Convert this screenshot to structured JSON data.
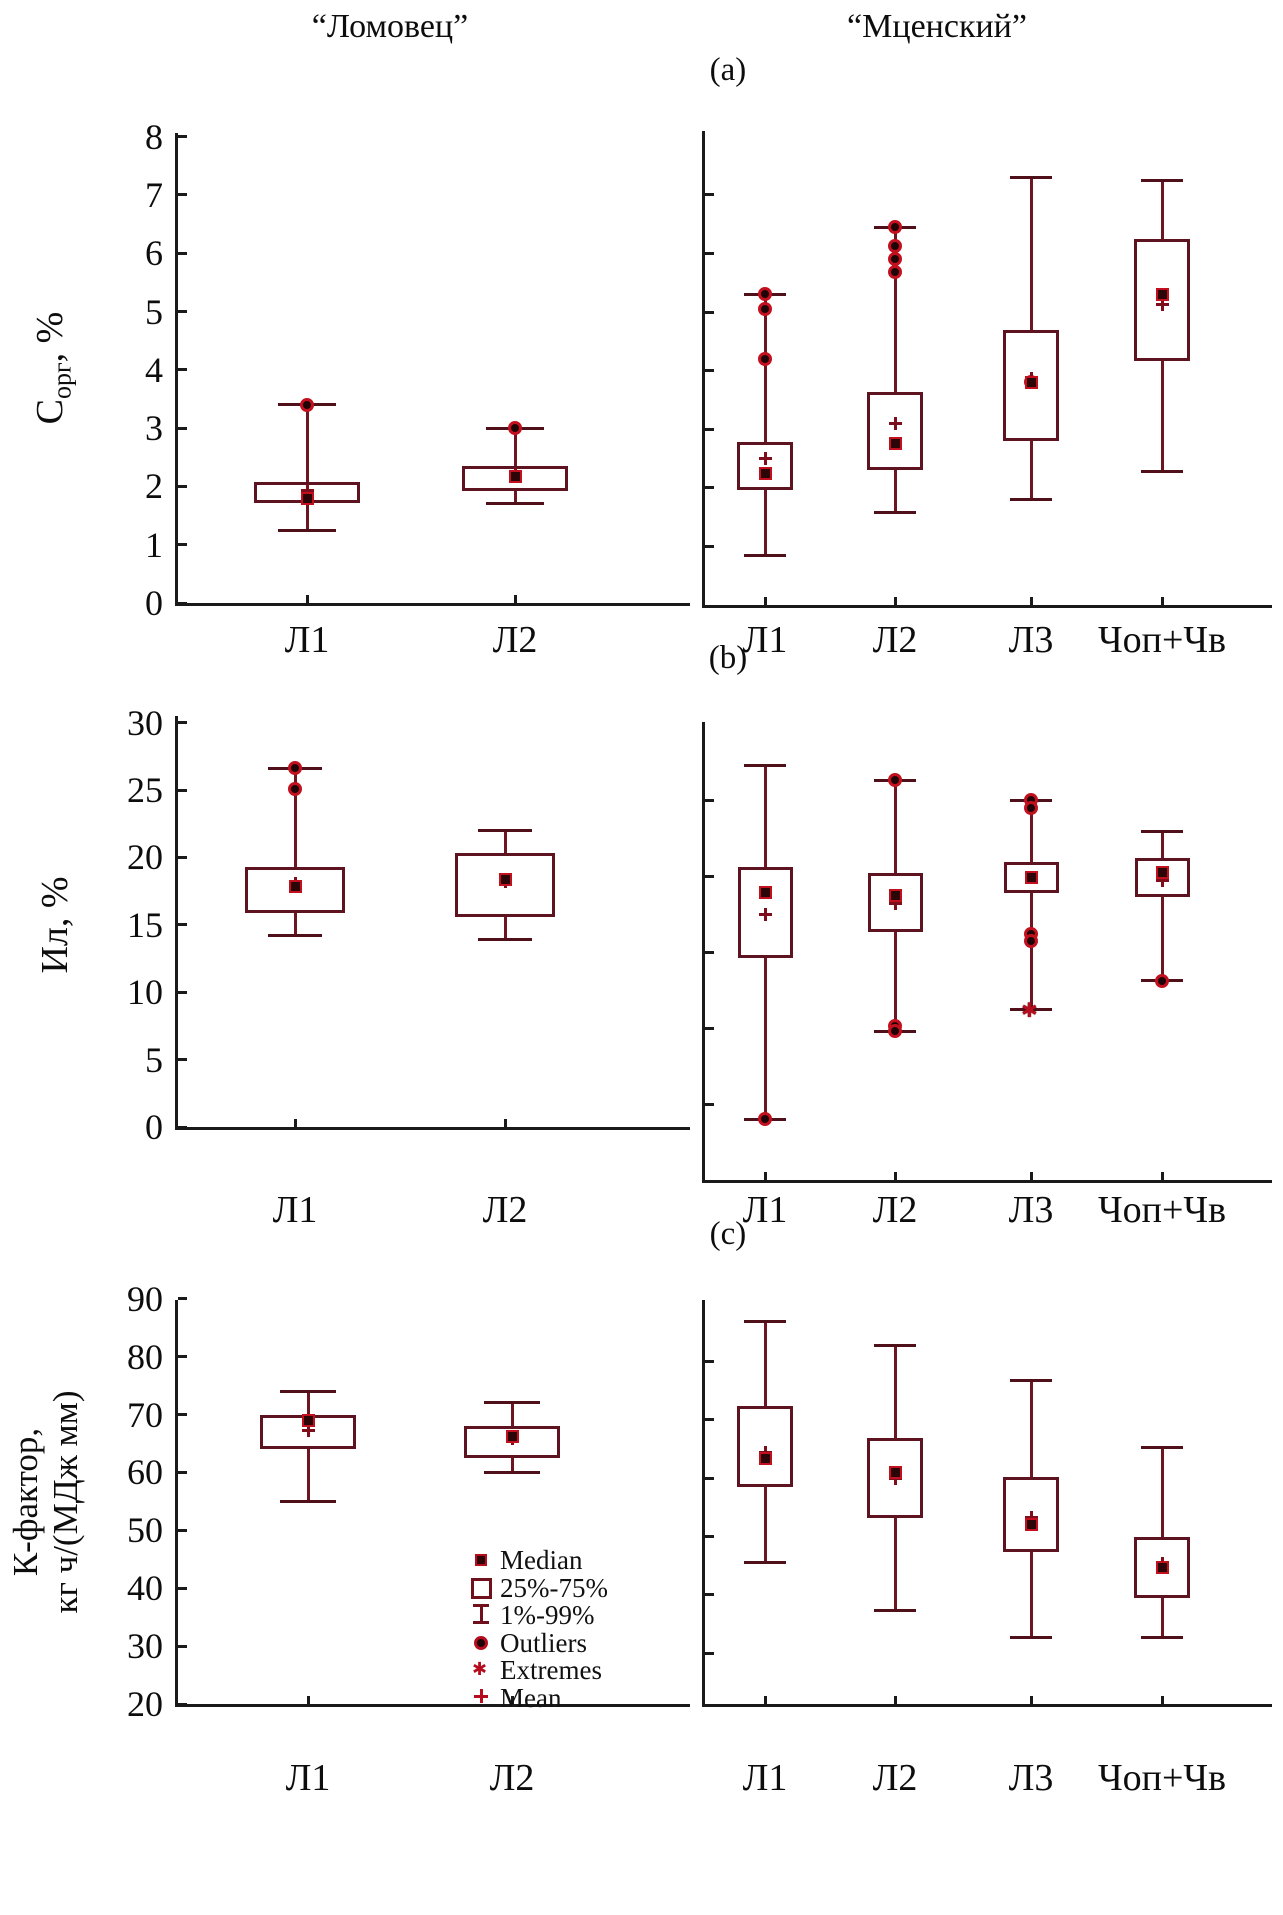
{
  "header": {
    "left_title": "“Ломовец”",
    "right_title": "“Мценский”"
  },
  "legend": {
    "items": [
      {
        "symbol": "median-marker-icon",
        "label": "Median"
      },
      {
        "symbol": "iqr-box-icon",
        "label": "25%-75%"
      },
      {
        "symbol": "whisker-range-icon",
        "label": "1%-99%"
      },
      {
        "symbol": "outlier-dot-icon",
        "label": "Outliers"
      },
      {
        "symbol": "extreme-star-icon",
        "label": "Extremes"
      },
      {
        "symbol": "mean-plus-icon",
        "label": "Mean"
      }
    ]
  },
  "chart_data": [
    {
      "type": "box",
      "panel_letter": "(a)",
      "ylabel_segments": [
        {
          "text": "С"
        },
        {
          "text": "орг",
          "sub": true
        },
        {
          "text": ", %"
        }
      ],
      "subplots": [
        {
          "site": "Ломовец",
          "ylim": [
            0,
            8
          ],
          "yticks": [
            0,
            1,
            2,
            3,
            4,
            5,
            6,
            7,
            8
          ],
          "ytick_labels": [
            "0",
            "1",
            "2",
            "3",
            "4",
            "5",
            "6",
            "7",
            "8"
          ],
          "boxes": [
            {
              "category": "Л1",
              "low": 1.25,
              "q1": 1.72,
              "median": 1.79,
              "mean": 1.93,
              "q3": 2.07,
              "high": 3.4,
              "outliers": [
                3.4
              ],
              "extremes": []
            },
            {
              "category": "Л2",
              "low": 1.7,
              "q1": 1.92,
              "median": 2.17,
              "mean": 2.2,
              "q3": 2.35,
              "high": 3.0,
              "outliers": [
                3.0
              ],
              "extremes": []
            }
          ]
        },
        {
          "site": "Мценский",
          "ylim": [
            0,
            8
          ],
          "yticks": [
            1,
            2,
            3,
            4,
            5,
            6,
            7
          ],
          "ytick_labels": null,
          "boxes": [
            {
              "category": "Л1",
              "low": 0.84,
              "q1": 1.96,
              "median": 2.25,
              "mean": 2.5,
              "q3": 2.78,
              "high": 5.3,
              "outliers": [
                5.3,
                5.05,
                4.2
              ],
              "extremes": []
            },
            {
              "category": "Л2",
              "low": 1.57,
              "q1": 2.3,
              "median": 2.76,
              "mean": 3.1,
              "q3": 3.63,
              "high": 6.45,
              "outliers": [
                6.45,
                6.12,
                5.9,
                5.68
              ],
              "extremes": []
            },
            {
              "category": "Л3",
              "low": 1.8,
              "q1": 2.8,
              "median": 3.8,
              "mean": 3.87,
              "q3": 4.7,
              "high": 7.3,
              "outliers": [
                3.8
              ],
              "extremes": []
            },
            {
              "category": "Чоп+Чв",
              "low": 2.27,
              "q1": 4.16,
              "median": 5.3,
              "mean": 5.13,
              "q3": 6.25,
              "high": 7.25,
              "outliers": [],
              "extremes": []
            }
          ]
        }
      ]
    },
    {
      "type": "box",
      "panel_letter": "(b)",
      "ylabel_segments": [
        {
          "text": "Ил, %"
        }
      ],
      "subplots": [
        {
          "site": "Ломовец",
          "ylim": [
            0,
            30
          ],
          "yticks": [
            0,
            5,
            10,
            15,
            20,
            25,
            30
          ],
          "ytick_labels": [
            "0",
            "5",
            "10",
            "15",
            "20",
            "25",
            "30"
          ],
          "boxes": [
            {
              "category": "Л1",
              "low": 14.2,
              "q1": 15.9,
              "median": 17.85,
              "mean": 18.1,
              "q3": 19.3,
              "high": 26.6,
              "outliers": [
                26.6,
                25.1
              ],
              "extremes": []
            },
            {
              "category": "Л2",
              "low": 13.9,
              "q1": 15.6,
              "median": 18.35,
              "mean": 18.2,
              "q3": 20.3,
              "high": 22.0,
              "outliers": [],
              "extremes": []
            }
          ]
        },
        {
          "site": "Мценский",
          "ylim": [
            0,
            30
          ],
          "yticks": [
            5,
            10,
            15,
            20,
            25
          ],
          "ytick_labels": null,
          "boxes": [
            {
              "category": "Л1",
              "low": 4.0,
              "q1": 14.6,
              "median": 18.9,
              "mean": 17.5,
              "q3": 20.6,
              "high": 27.3,
              "outliers": [
                4.0
              ],
              "extremes": []
            },
            {
              "category": "Л2",
              "low": 9.8,
              "q1": 16.3,
              "median": 18.7,
              "mean": 18.2,
              "q3": 20.2,
              "high": 26.3,
              "outliers": [
                26.3,
                10.1,
                9.8
              ],
              "extremes": []
            },
            {
              "category": "Л3",
              "low": 11.2,
              "q1": 18.9,
              "median": 19.9,
              "mean": 19.9,
              "q3": 20.9,
              "high": 25.0,
              "outliers": [
                25.0,
                24.5,
                16.2,
                15.7
              ],
              "extremes": [
                11.2
              ]
            },
            {
              "category": "Чоп+Чв",
              "low": 13.1,
              "q1": 18.6,
              "median": 20.2,
              "mean": 19.7,
              "q3": 21.2,
              "high": 22.9,
              "outliers": [
                13.1
              ],
              "extremes": []
            }
          ]
        }
      ]
    },
    {
      "type": "box",
      "panel_letter": "(c)",
      "ylabel_segments": [
        {
          "text": "К-фактор,"
        },
        {
          "br": true
        },
        {
          "text": "кг ч/(МДж мм)"
        }
      ],
      "subplots": [
        {
          "site": "Ломовец",
          "ylim": [
            20,
            90
          ],
          "yticks": [
            20,
            30,
            40,
            50,
            60,
            70,
            80,
            90
          ],
          "ytick_labels": [
            "20",
            "30",
            "40",
            "50",
            "60",
            "70",
            "80",
            "90"
          ],
          "boxes": [
            {
              "category": "Л1",
              "low": 55,
              "q1": 64,
              "median": 69,
              "mean": 67.3,
              "q3": 70,
              "high": 74,
              "outliers": [],
              "extremes": []
            },
            {
              "category": "Л2",
              "low": 60,
              "q1": 62.5,
              "median": 66.2,
              "mean": 65.8,
              "q3": 68,
              "high": 72,
              "outliers": [],
              "extremes": []
            }
          ]
        },
        {
          "site": "Мценский",
          "ylim": [
            20,
            90
          ],
          "yticks": [
            30,
            40,
            50,
            60,
            70,
            80
          ],
          "ytick_labels": null,
          "boxes": [
            {
              "category": "Л1",
              "low": 45.5,
              "q1": 58.5,
              "median": 63.3,
              "mean": 64.4,
              "q3": 72.4,
              "high": 86.8,
              "outliers": [],
              "extremes": []
            },
            {
              "category": "Л2",
              "low": 37.3,
              "q1": 53.2,
              "median": 61.0,
              "mean": 60.0,
              "q3": 66.8,
              "high": 82.7,
              "outliers": [],
              "extremes": []
            },
            {
              "category": "Л3",
              "low": 32.6,
              "q1": 47.3,
              "median": 52.0,
              "mean": 53.2,
              "q3": 60.2,
              "high": 76.8,
              "outliers": [],
              "extremes": []
            },
            {
              "category": "Чоп+Чв",
              "low": 32.6,
              "q1": 39.4,
              "median": 44.7,
              "mean": 45.3,
              "q3": 49.9,
              "high": 65.2,
              "outliers": [],
              "extremes": []
            }
          ]
        }
      ]
    }
  ]
}
